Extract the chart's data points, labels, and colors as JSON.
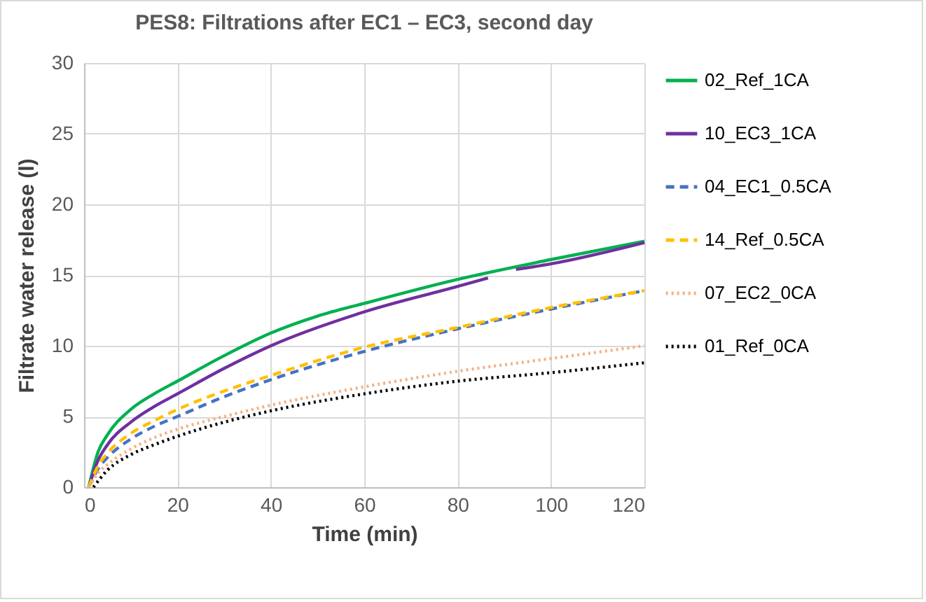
{
  "chart_data": {
    "type": "line",
    "title": "PES8: Filtrations after EC1 – EC3, second day",
    "xlabel": "Time (min)",
    "ylabel": "Filtrate water release (l)",
    "xlim": [
      0,
      120
    ],
    "xticks": [
      0,
      20,
      40,
      60,
      80,
      100,
      120
    ],
    "ylim": [
      0,
      30
    ],
    "yticks": [
      0,
      5,
      10,
      15,
      20,
      25,
      30
    ],
    "grid": true,
    "legend": "right",
    "marker": "none",
    "series": [
      {
        "name": "02_Ref_1CA",
        "color": "#00b050",
        "line_style": "solid",
        "x": [
          1,
          3,
          5,
          10,
          15,
          20,
          30,
          40,
          50,
          60,
          80,
          100,
          120
        ],
        "values": [
          0,
          2.5,
          3.7,
          5.5,
          6.6,
          7.5,
          9.3,
          10.9,
          12.1,
          13.0,
          14.7,
          16.1,
          17.4
        ]
      },
      {
        "name": "10_EC3_1CA",
        "color": "#7030a0",
        "line_style": "solid",
        "x": [
          1,
          3,
          5,
          10,
          15,
          20,
          30,
          40,
          60,
          80,
          86.5,
          89,
          92.5,
          100,
          120
        ],
        "values": [
          0,
          1.9,
          3.0,
          4.6,
          5.7,
          6.6,
          8.4,
          10.0,
          12.4,
          14.2,
          14.8,
          null,
          15.4,
          15.8,
          17.3
        ]
      },
      {
        "name": "04_EC1_0.5CA",
        "color": "#4472c4",
        "line_style": "dashed",
        "x": [
          1,
          3,
          5,
          10,
          15,
          20,
          30,
          40,
          60,
          80,
          100,
          120
        ],
        "values": [
          0,
          1.3,
          2.1,
          3.4,
          4.3,
          5.0,
          6.4,
          7.6,
          9.6,
          11.2,
          12.6,
          13.9
        ]
      },
      {
        "name": "14_Ref_0.5CA",
        "color": "#ffc000",
        "line_style": "dashed",
        "x": [
          1,
          3,
          5,
          10,
          15,
          20,
          30,
          40,
          60,
          80,
          100,
          120
        ],
        "values": [
          0,
          1.5,
          2.4,
          3.8,
          4.7,
          5.5,
          6.8,
          7.9,
          9.9,
          11.3,
          12.7,
          13.9
        ]
      },
      {
        "name": "07_EC2_0CA",
        "color": "#f4b183",
        "line_style": "dotted",
        "x": [
          1,
          3,
          5,
          10,
          15,
          20,
          30,
          40,
          60,
          80,
          100,
          120
        ],
        "values": [
          0,
          1.0,
          1.6,
          2.7,
          3.5,
          4.1,
          5.0,
          5.8,
          7.1,
          8.2,
          9.1,
          10.0
        ]
      },
      {
        "name": "01_Ref_0CA",
        "color": "#000000",
        "line_style": "dotted",
        "x": [
          2,
          5,
          10,
          15,
          20,
          30,
          40,
          60,
          80,
          100,
          120
        ],
        "values": [
          0,
          1.2,
          2.3,
          3.0,
          3.6,
          4.6,
          5.4,
          6.6,
          7.5,
          8.1,
          8.8
        ]
      }
    ]
  }
}
